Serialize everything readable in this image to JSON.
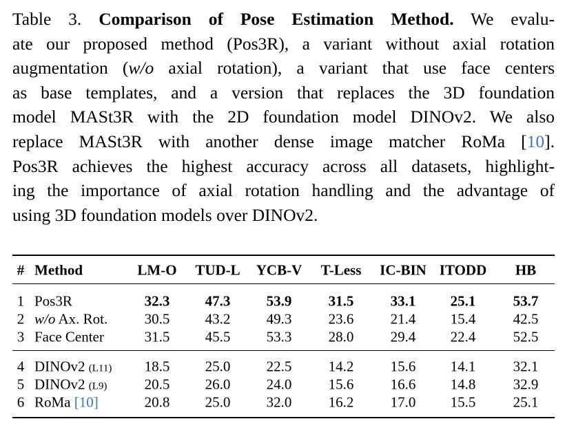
{
  "caption": {
    "lines": [
      [
        "Table 3.",
        "Comparison of Pose Estimation Method.",
        "We evalu-"
      ],
      [
        "ate our proposed method (Pos3R), a variant without axial rotation"
      ],
      [
        "augmentation (",
        "w/o",
        " axial rotation), a variant that use face centers"
      ],
      [
        "as base templates, and a version that replaces the 3D foundation"
      ],
      [
        "model MASt3R with the 2D foundation model DINOv2. We also"
      ],
      [
        "replace MASt3R with another dense image matcher RoMa [",
        "10",
        "]."
      ],
      [
        "Pos3R achieves the highest accuracy across all datasets, highlight-"
      ],
      [
        "ing the importance of axial rotation handling and the advantage of"
      ],
      [
        "using 3D foundation models over DINOv2."
      ]
    ]
  },
  "table": {
    "headers": [
      "#",
      "Method",
      "LM-O",
      "TUD-L",
      "YCB-V",
      "T-Less",
      "IC-BIN",
      "ITODD",
      "HB"
    ],
    "rows": [
      {
        "id": "1",
        "method": [
          "Pos3R"
        ],
        "values": [
          "32.3",
          "47.3",
          "53.9",
          "31.5",
          "33.1",
          "25.1",
          "53.7"
        ]
      },
      {
        "id": "2",
        "method": [
          "w/o",
          "Ax. Rot."
        ],
        "values": [
          "30.5",
          "43.2",
          "49.3",
          "23.6",
          "21.4",
          "15.4",
          "42.5"
        ]
      },
      {
        "id": "3",
        "method": [
          "Face Center"
        ],
        "values": [
          "31.5",
          "45.5",
          "53.3",
          "28.0",
          "29.4",
          "22.4",
          "52.5"
        ]
      },
      {
        "id": "4",
        "method": [
          "DINOv2",
          "(L11)"
        ],
        "values": [
          "18.5",
          "25.0",
          "22.5",
          "14.2",
          "15.6",
          "14.1",
          "32.1"
        ]
      },
      {
        "id": "5",
        "method": [
          "DINOv2",
          "(L9)"
        ],
        "values": [
          "20.5",
          "26.0",
          "24.0",
          "15.6",
          "16.6",
          "14.8",
          "32.9"
        ]
      },
      {
        "id": "6",
        "method": [
          "RoMa",
          "[10]"
        ],
        "values": [
          "20.8",
          "25.0",
          "32.0",
          "16.2",
          "17.0",
          "15.5",
          "25.1"
        ]
      }
    ]
  }
}
